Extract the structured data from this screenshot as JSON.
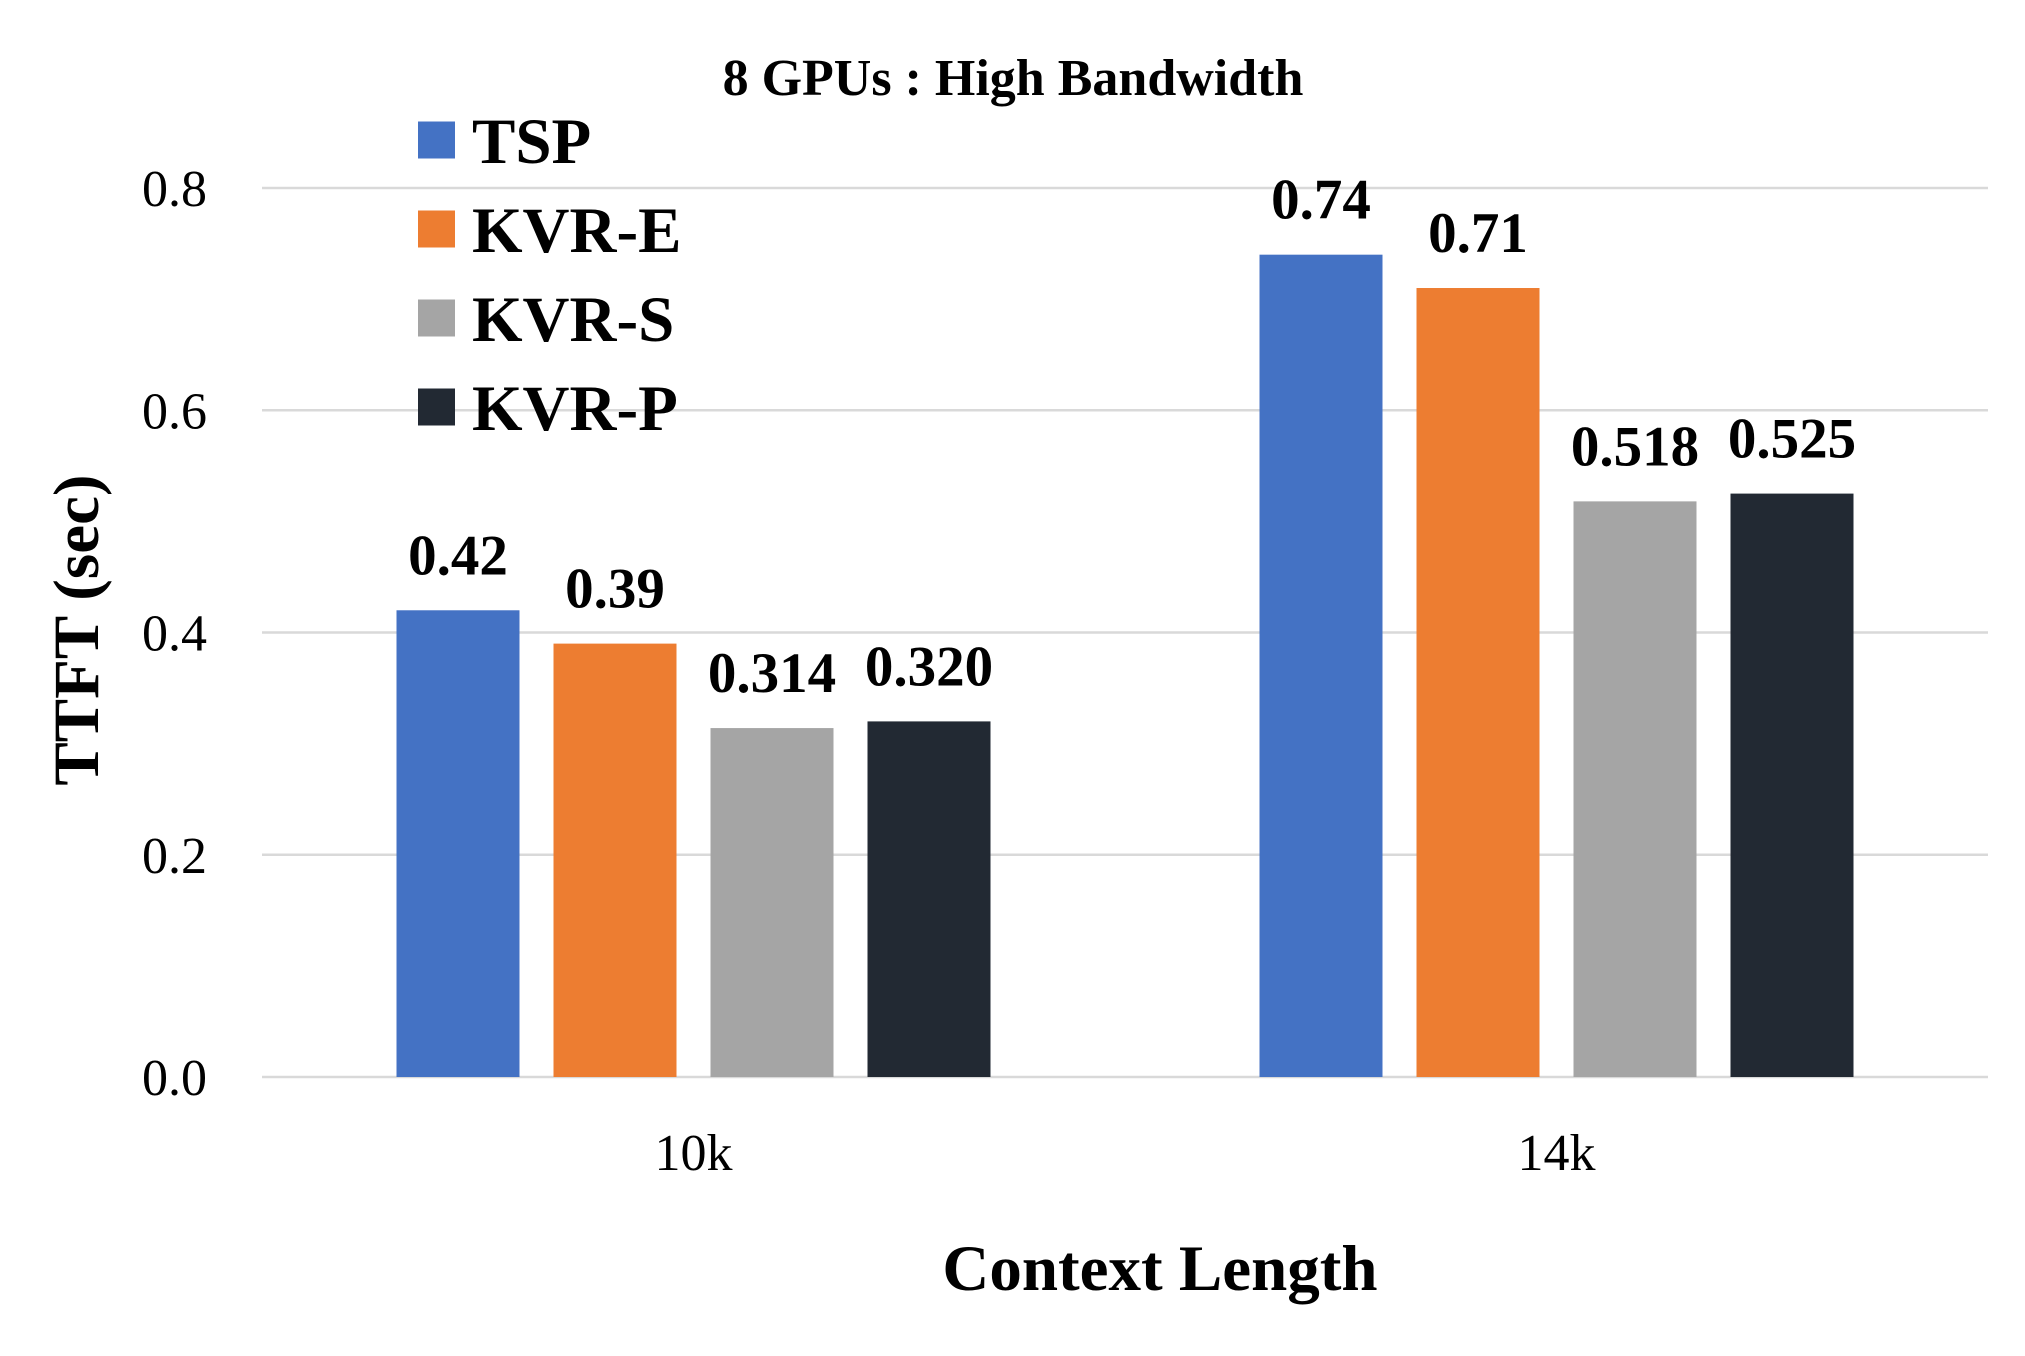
{
  "chart_data": {
    "type": "bar",
    "title": "8 GPUs : High Bandwidth",
    "xlabel": "Context Length",
    "ylabel": "TTFT (sec)",
    "ylim": [
      0,
      0.8
    ],
    "yticks": [
      "0.0",
      "0.2",
      "0.4",
      "0.6",
      "0.8"
    ],
    "ytick_values": [
      0,
      0.2,
      0.4,
      0.6,
      0.8
    ],
    "grid": true,
    "legend_position": "top-left",
    "categories": [
      "10k",
      "14k"
    ],
    "series": [
      {
        "name": "TSP",
        "color": "#4472c4",
        "values": [
          0.42,
          0.74
        ],
        "labels": [
          "0.42",
          "0.74"
        ]
      },
      {
        "name": "KVR-E",
        "color": "#ed7d31",
        "values": [
          0.39,
          0.71
        ],
        "labels": [
          "0.39",
          "0.71"
        ]
      },
      {
        "name": "KVR-S",
        "color": "#a5a5a5",
        "values": [
          0.314,
          0.518
        ],
        "labels": [
          "0.314",
          "0.518"
        ]
      },
      {
        "name": "KVR-P",
        "color": "#222933",
        "values": [
          0.32,
          0.525
        ],
        "labels": [
          "0.320",
          "0.525"
        ]
      }
    ]
  }
}
